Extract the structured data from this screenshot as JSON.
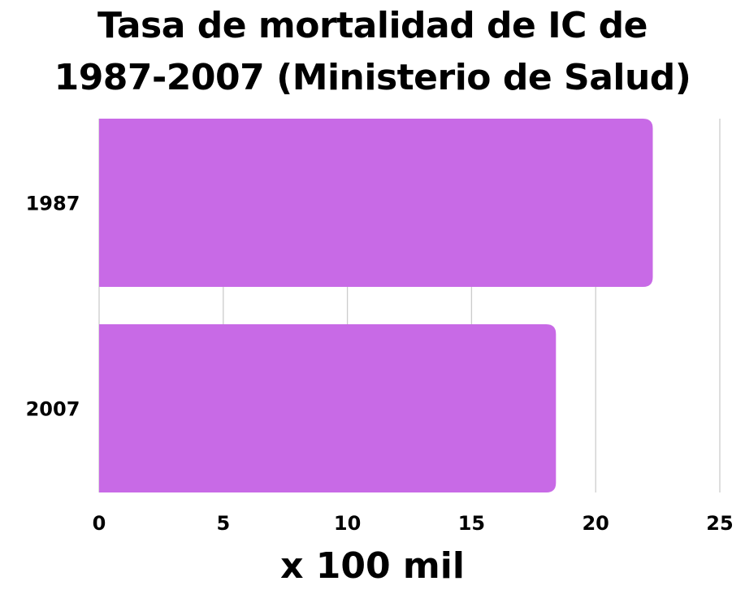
{
  "chart_data": {
    "type": "bar",
    "orientation": "horizontal",
    "title_lines": [
      "Tasa de mortalidad de IC de",
      "1987-2007 (Ministerio de Salud)"
    ],
    "categories": [
      "1987",
      "2007"
    ],
    "values": [
      22.3,
      18.4
    ],
    "xlabel": "x 100 mil",
    "ylabel": "",
    "xlim": [
      0,
      25
    ],
    "xticks": [
      0,
      5,
      10,
      15,
      20,
      25
    ],
    "grid": true,
    "bar_color": "#c86ae6",
    "grid_color": "#cccccc"
  }
}
